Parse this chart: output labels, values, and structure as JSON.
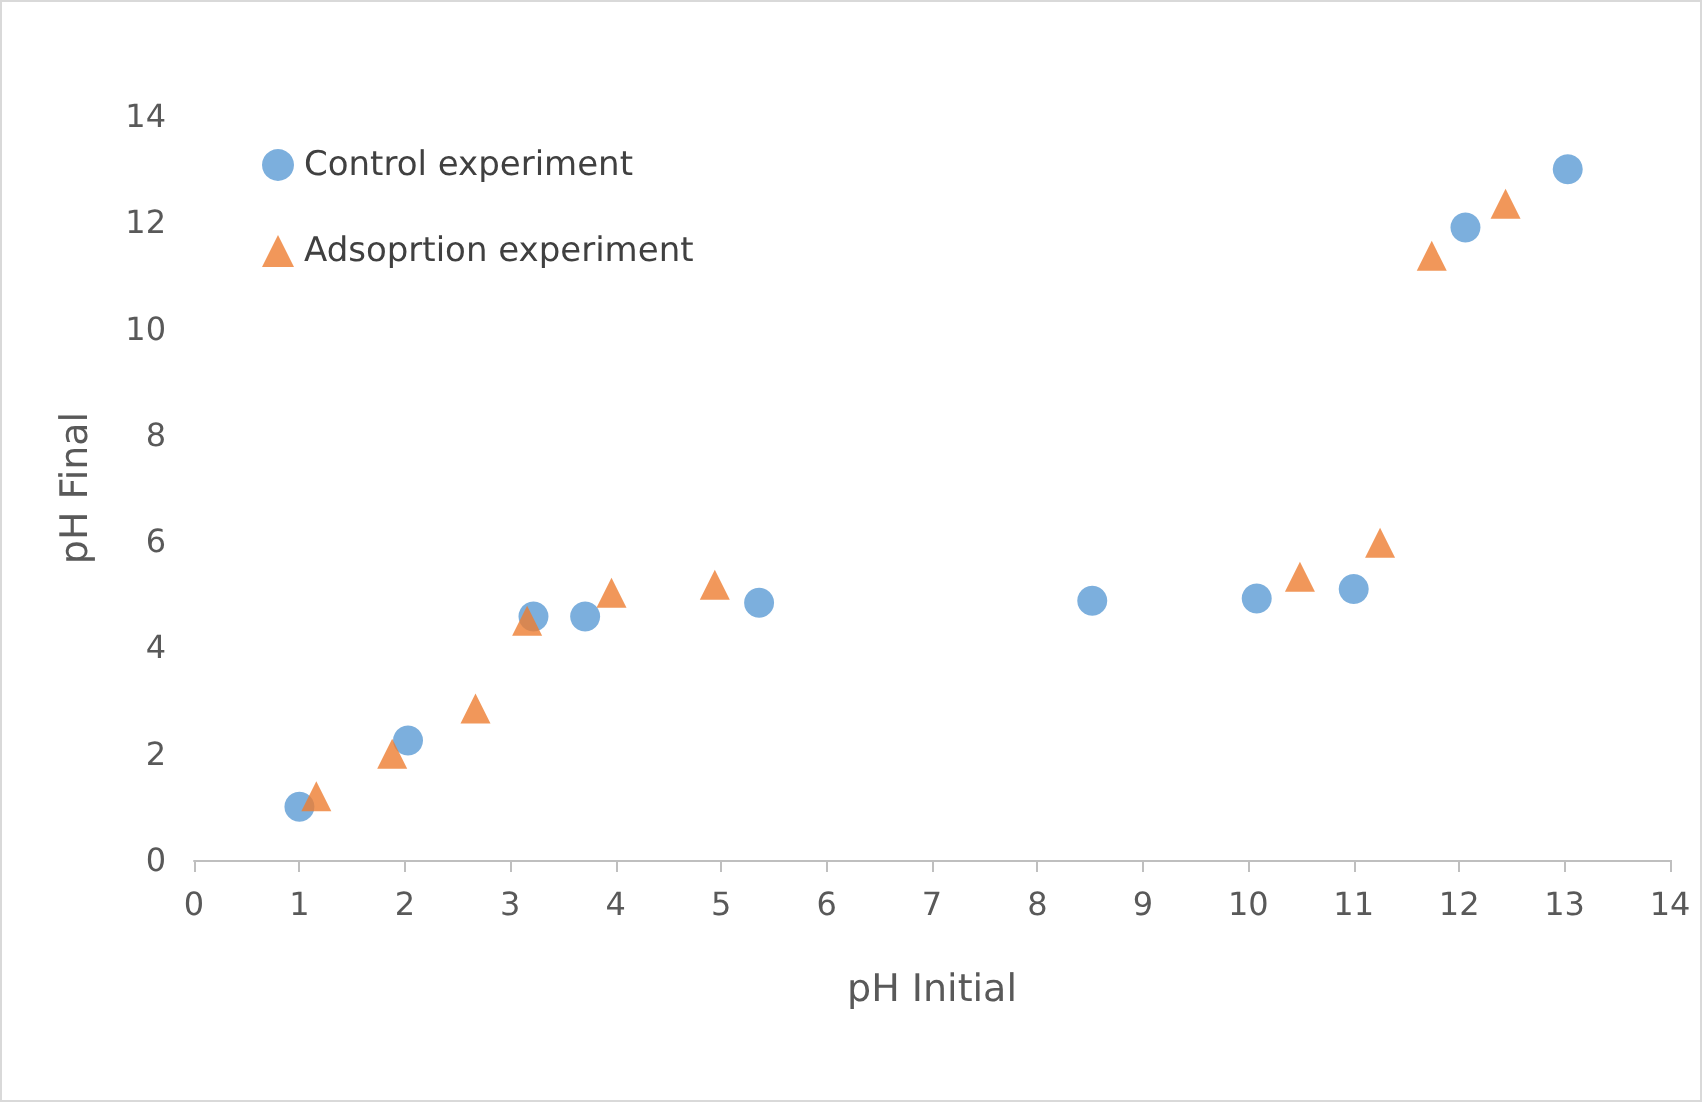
{
  "chart_data": {
    "type": "scatter",
    "xlabel": "pH Initial",
    "ylabel": "pH Final",
    "legend": "top left",
    "grid": false,
    "xlim": [
      0,
      14
    ],
    "xticks": [
      0,
      1,
      2,
      3,
      4,
      5,
      6,
      7,
      8,
      9,
      10,
      11,
      12,
      13,
      14
    ],
    "ylim": [
      0,
      14
    ],
    "yticks": [
      0,
      2,
      4,
      6,
      8,
      10,
      12,
      14
    ],
    "series": [
      {
        "name": "Control experiment",
        "color": "#5b9bd5",
        "marker": "circle",
        "x": [
          1.0,
          2.03,
          3.22,
          3.71,
          5.36,
          8.52,
          10.08,
          11.0,
          12.06,
          13.03
        ],
        "values": [
          1.0,
          2.25,
          4.58,
          4.58,
          4.84,
          4.88,
          4.92,
          5.1,
          11.9,
          13.0
        ]
      },
      {
        "name": "Adsoprtion experiment",
        "color": "#ed7d31",
        "marker": "triangle",
        "x": [
          1.16,
          1.88,
          2.67,
          3.16,
          3.96,
          4.94,
          10.49,
          11.25,
          11.74,
          12.44
        ],
        "values": [
          1.2,
          2.0,
          2.85,
          4.5,
          5.03,
          5.18,
          5.33,
          5.97,
          11.37,
          12.35
        ]
      }
    ]
  }
}
